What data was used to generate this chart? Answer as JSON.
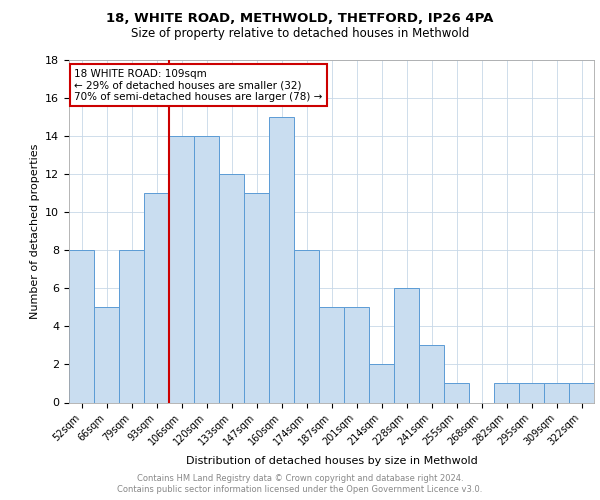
{
  "title1": "18, WHITE ROAD, METHWOLD, THETFORD, IP26 4PA",
  "title2": "Size of property relative to detached houses in Methwold",
  "xlabel": "Distribution of detached houses by size in Methwold",
  "ylabel": "Number of detached properties",
  "categories": [
    "52sqm",
    "66sqm",
    "79sqm",
    "93sqm",
    "106sqm",
    "120sqm",
    "133sqm",
    "147sqm",
    "160sqm",
    "174sqm",
    "187sqm",
    "201sqm",
    "214sqm",
    "228sqm",
    "241sqm",
    "255sqm",
    "268sqm",
    "282sqm",
    "295sqm",
    "309sqm",
    "322sqm"
  ],
  "values": [
    8,
    5,
    8,
    11,
    14,
    14,
    12,
    11,
    15,
    8,
    5,
    5,
    2,
    6,
    3,
    1,
    0,
    1,
    1,
    1,
    1
  ],
  "bar_color": "#c9ddf0",
  "bar_edge_color": "#5b9bd5",
  "vline_color": "#cc0000",
  "annotation_text": "18 WHITE ROAD: 109sqm\n← 29% of detached houses are smaller (32)\n70% of semi-detached houses are larger (78) →",
  "annotation_box_color": "#cc0000",
  "ylim": [
    0,
    18
  ],
  "yticks": [
    0,
    2,
    4,
    6,
    8,
    10,
    12,
    14,
    16,
    18
  ],
  "footer": "Contains HM Land Registry data © Crown copyright and database right 2024.\nContains public sector information licensed under the Open Government Licence v3.0.",
  "background_color": "#ffffff",
  "grid_color": "#c8d8e8"
}
